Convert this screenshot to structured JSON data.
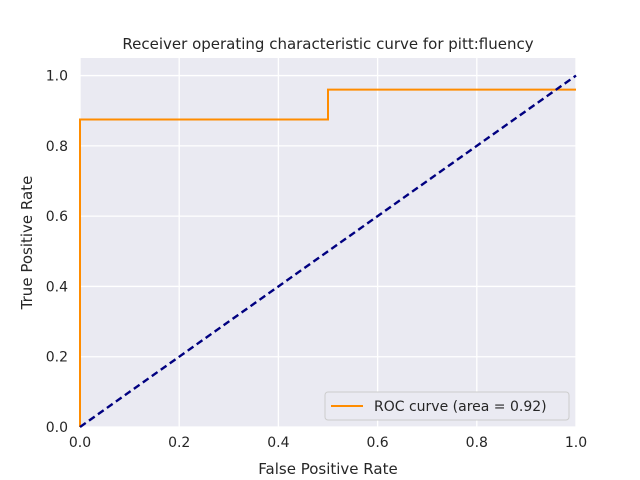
{
  "chart_data": {
    "type": "line",
    "title": "Receiver operating characteristic curve for pitt:fluency",
    "xlabel": "False Positive Rate",
    "ylabel": "True Positive Rate",
    "xlim": [
      0.0,
      1.0
    ],
    "ylim": [
      0.0,
      1.05
    ],
    "xticks": [
      0.0,
      0.2,
      0.4,
      0.6,
      0.8,
      1.0
    ],
    "yticks": [
      0.0,
      0.2,
      0.4,
      0.6,
      0.8,
      1.0
    ],
    "xtick_labels": [
      "0.0",
      "0.2",
      "0.4",
      "0.6",
      "0.8",
      "1.0"
    ],
    "ytick_labels": [
      "0.0",
      "0.2",
      "0.4",
      "0.6",
      "0.8",
      "1.0"
    ],
    "grid": true,
    "legend_position": "lower-right",
    "series": [
      {
        "name": "ROC curve (area = 0.92)",
        "color": "#ff8c00",
        "style": "solid",
        "x": [
          0.0,
          0.0,
          0.5,
          0.5,
          1.0
        ],
        "y": [
          0.0,
          0.875,
          0.875,
          0.96,
          0.96
        ]
      },
      {
        "color": "#000080",
        "style": "dashed",
        "x": [
          0.0,
          1.0
        ],
        "y": [
          0.0,
          1.0
        ]
      }
    ]
  }
}
